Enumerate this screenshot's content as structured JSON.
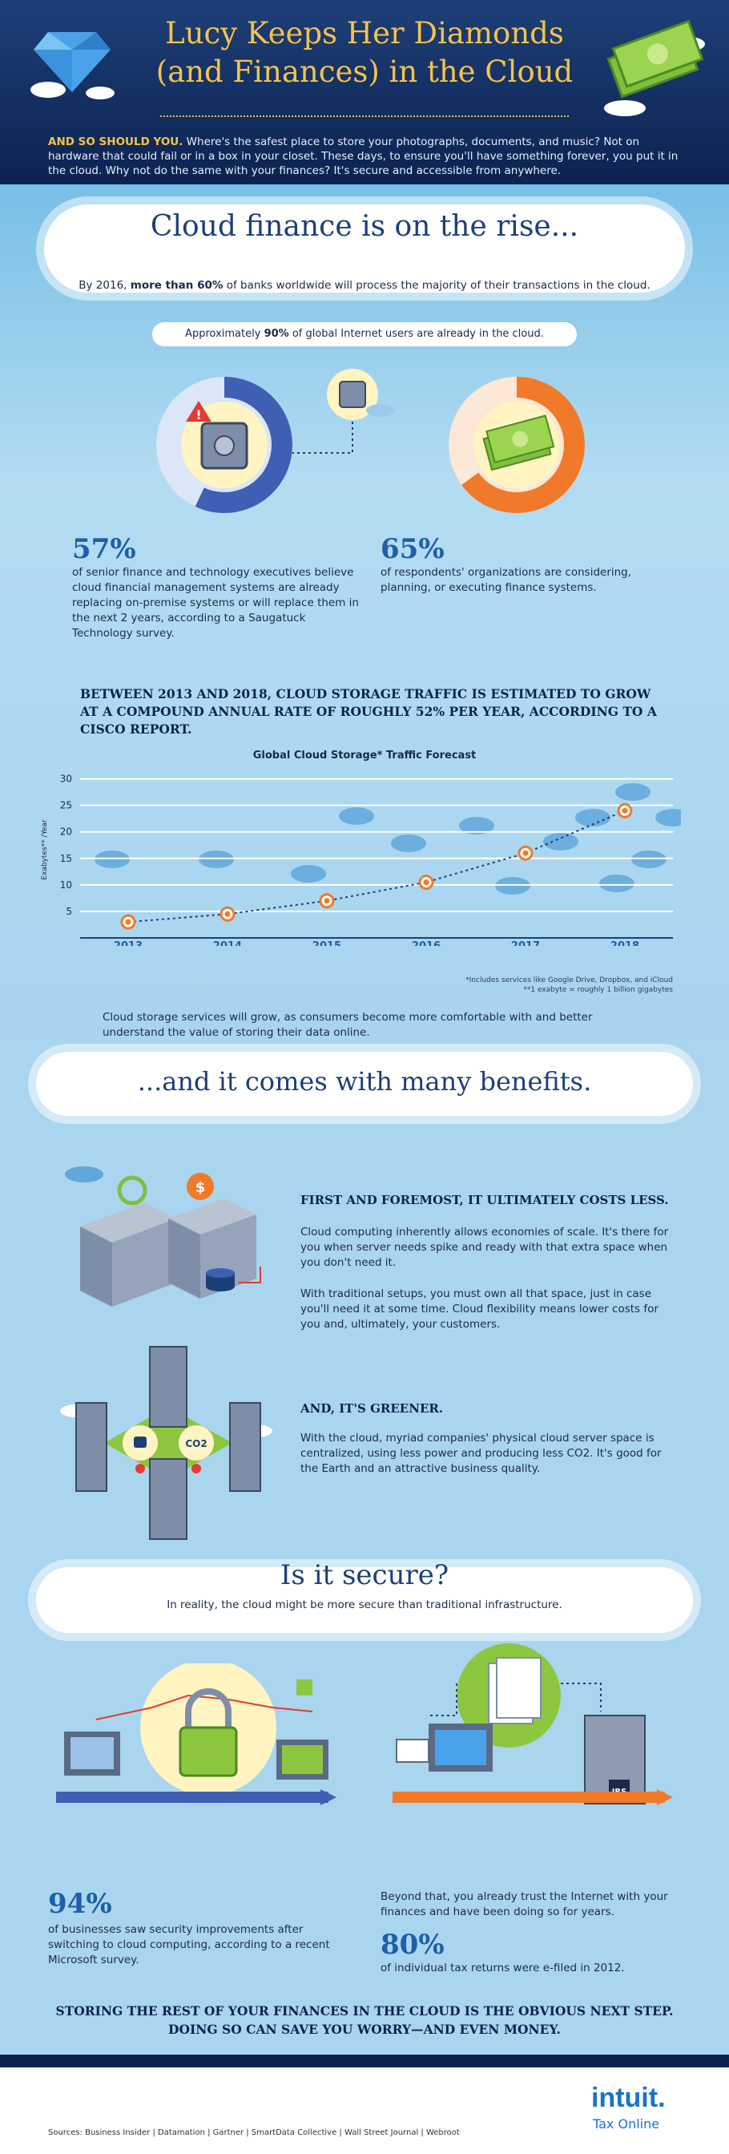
{
  "header": {
    "title_line1": "Lucy Keeps Her Diamonds",
    "title_line2": "(and Finances) in the Cloud",
    "intro_lead": "AND SO SHOULD YOU.",
    "intro_text": " Where's the safest place to store your photographs, documents, and music? Not on hardware that could fail or in a box in your closet. These days, to ensure you'll have something forever, you put it in the cloud. Why not do the same with your finances? It's secure and accessible from anywhere."
  },
  "rise": {
    "title": "Cloud finance is on the rise...",
    "sub_pre": "By 2016, ",
    "sub_bold": "more than 60%",
    "sub_post": " of banks worldwide will process the majority of their transactions in the cloud.",
    "ninety_pre": "Approximately ",
    "ninety_bold": "90%",
    "ninety_post": " of global Internet users are already in the cloud."
  },
  "stat57": {
    "value": "57%",
    "text": "of senior finance and technology executives believe cloud financial management systems are already replacing on-premise systems or will replace them in the next 2 years, according to a Saugatuck Technology survey.",
    "ring_fraction": 0.57
  },
  "stat65": {
    "value": "65%",
    "text": "of respondents' organizations are considering, planning, or executing finance systems.",
    "ring_fraction": 0.65
  },
  "cisco": "BETWEEN 2013 AND 2018, CLOUD STORAGE TRAFFIC IS ESTIMATED TO GROW AT A COMPOUND ANNUAL RATE OF ROUGHLY 52% PER YEAR, ACCORDING TO A CISCO REPORT.",
  "chart_data": {
    "type": "line",
    "title": "Global Cloud Storage* Traffic Forecast",
    "ylabel": "Exabytes** /Year",
    "xlabel": "",
    "categories": [
      "2013",
      "2014",
      "2015",
      "2016",
      "2017",
      "2018"
    ],
    "series": [
      {
        "name": "Cloud storage traffic",
        "values": [
          3,
          4.5,
          7,
          10.5,
          16,
          24
        ]
      }
    ],
    "yticks": [
      5,
      10,
      15,
      20,
      25,
      30
    ],
    "ylim": [
      0,
      31
    ],
    "footnote1": "*Includes services like Google Drive, Dropbox, and iCloud",
    "footnote2": "**1 exabyte = roughly 1 billion gigabytes"
  },
  "growtext": "Cloud storage services will grow, as consumers become more comfortable with and better understand the value of storing their data online.",
  "benefits": {
    "title": "...and it comes with many benefits.",
    "cost_head": "FIRST AND FOREMOST, IT ULTIMATELY COSTS LESS.",
    "cost_p1": "Cloud computing inherently allows economies of scale. It's there for you when server needs spike and ready with that extra space when you don't need it.",
    "cost_p2": "With traditional setups, you must own all that space, just in case you'll need it at some time. Cloud flexibility means lower costs for you and, ultimately, your customers.",
    "green_head": "AND, IT'S GREENER.",
    "green_p": "With the cloud, myriad companies' physical cloud server space is centralized, using less power and producing less CO2. It's good for the Earth and an attractive business quality.",
    "co2_label": "CO2",
    "dollar": "$"
  },
  "secure": {
    "title": "Is it secure?",
    "sub": "In reality, the cloud might be more secure than traditional infrastructure.",
    "irs_label": "IRS"
  },
  "stat94": {
    "value": "94%",
    "text": "of businesses saw security improvements after switching to cloud computing, according to a recent Microsoft survey."
  },
  "trust_text": "Beyond that, you already trust the Internet with your finances and have been doing so for years.",
  "stat80": {
    "value": "80%",
    "text": "of individual tax returns were e-filed in 2012."
  },
  "closing": "STORING THE REST OF YOUR FINANCES IN THE CLOUD IS THE OBVIOUS NEXT STEP. DOING SO CAN SAVE YOU WORRY—AND EVEN MONEY.",
  "footer": {
    "brand": "intuit.",
    "product": "Tax Online",
    "sources": "Sources:  Business Insider  |  Datamation  |  Gartner  |  SmartData Collective  |  Wall Street Journal  |  Webroot"
  },
  "colors": {
    "navy": "#0c2350",
    "gold": "#f6c24a",
    "blue_ring": "#3f5fb4",
    "orange_ring": "#f07a2a",
    "chart_line": "#1d3f78",
    "marker": "#f07a2a"
  }
}
